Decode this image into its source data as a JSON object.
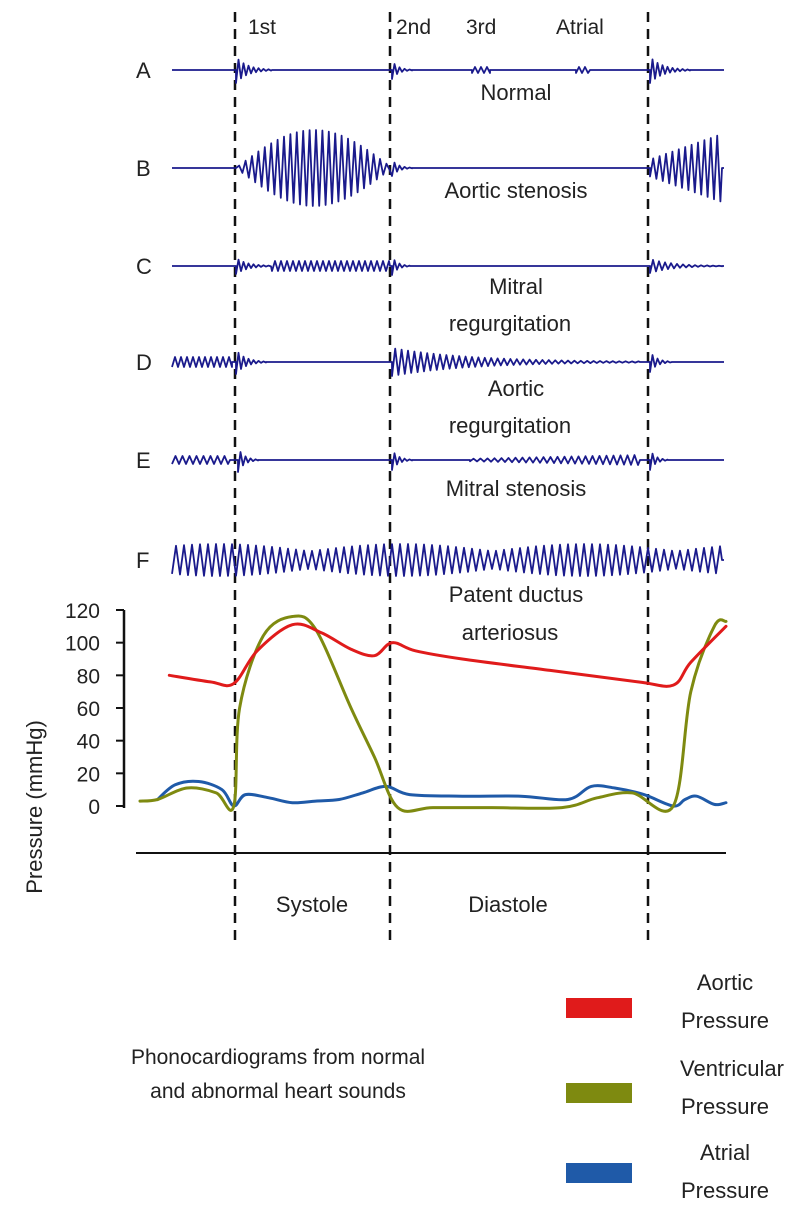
{
  "sound_labels": [
    "1st",
    "2nd",
    "3rd",
    "Atrial"
  ],
  "rows": [
    {
      "letter": "A",
      "label": [
        "Normal"
      ]
    },
    {
      "letter": "B",
      "label": [
        "Aortic stenosis"
      ]
    },
    {
      "letter": "C",
      "label": [
        "Mitral",
        "regurgitation"
      ]
    },
    {
      "letter": "D",
      "label": [
        "Aortic",
        "regurgitation"
      ]
    },
    {
      "letter": "E",
      "label": [
        "Mitral stenosis"
      ]
    },
    {
      "letter": "F",
      "label": [
        "Patent ductus",
        "arteriosus"
      ]
    }
  ],
  "trace_color": "#1a1a8c",
  "chart_data": {
    "type": "line",
    "ylabel": "Pressure (mmHg)",
    "yticks": [
      0,
      20,
      40,
      60,
      80,
      100,
      120
    ],
    "ylim": [
      0,
      120
    ],
    "phases": [
      "Systole",
      "Diastole"
    ],
    "series": [
      {
        "name": "Aortic Pressure",
        "color": "#e01b1b",
        "points": [
          [
            0.05,
            80
          ],
          [
            0.12,
            76
          ],
          [
            0.16,
            75
          ],
          [
            0.2,
            95
          ],
          [
            0.26,
            111
          ],
          [
            0.31,
            106
          ],
          [
            0.36,
            96
          ],
          [
            0.4,
            92
          ],
          [
            0.43,
            100
          ],
          [
            0.47,
            95
          ],
          [
            0.55,
            90
          ],
          [
            0.7,
            83
          ],
          [
            0.85,
            76
          ],
          [
            0.91,
            74
          ],
          [
            0.94,
            88
          ],
          [
            1.0,
            110
          ]
        ]
      },
      {
        "name": "Ventricular Pressure",
        "color": "#7e8a10",
        "points": [
          [
            0.0,
            3
          ],
          [
            0.03,
            4
          ],
          [
            0.08,
            11
          ],
          [
            0.13,
            8
          ],
          [
            0.16,
            0
          ],
          [
            0.17,
            60
          ],
          [
            0.21,
            104
          ],
          [
            0.26,
            116
          ],
          [
            0.3,
            108
          ],
          [
            0.36,
            60
          ],
          [
            0.4,
            30
          ],
          [
            0.44,
            -1
          ],
          [
            0.5,
            -1
          ],
          [
            0.6,
            -1
          ],
          [
            0.72,
            -1
          ],
          [
            0.78,
            5
          ],
          [
            0.84,
            8
          ],
          [
            0.91,
            0
          ],
          [
            0.94,
            70
          ],
          [
            0.98,
            110
          ],
          [
            1.0,
            113
          ]
        ]
      },
      {
        "name": "Atrial Pressure",
        "color": "#1f5aa8",
        "points": [
          [
            0.03,
            4
          ],
          [
            0.06,
            13
          ],
          [
            0.1,
            15
          ],
          [
            0.14,
            10
          ],
          [
            0.16,
            0
          ],
          [
            0.18,
            7
          ],
          [
            0.22,
            5
          ],
          [
            0.26,
            2
          ],
          [
            0.3,
            3
          ],
          [
            0.34,
            4
          ],
          [
            0.38,
            8
          ],
          [
            0.42,
            12
          ],
          [
            0.46,
            7
          ],
          [
            0.55,
            6
          ],
          [
            0.65,
            6
          ],
          [
            0.73,
            4
          ],
          [
            0.77,
            12
          ],
          [
            0.81,
            11
          ],
          [
            0.86,
            7
          ],
          [
            0.91,
            0
          ],
          [
            0.93,
            4
          ],
          [
            0.95,
            6
          ],
          [
            0.98,
            1
          ],
          [
            1.0,
            2
          ]
        ]
      }
    ]
  },
  "legend": [
    {
      "lines": [
        "Aortic",
        "Pressure"
      ],
      "color": "#e01b1b"
    },
    {
      "lines": [
        "Ventricular",
        "Pressure"
      ],
      "color": "#7e8a10"
    },
    {
      "lines": [
        "Atrial",
        "Pressure"
      ],
      "color": "#1f5aa8"
    }
  ],
  "caption": [
    "Phonocardiograms from normal",
    "and abnormal heart sounds"
  ]
}
